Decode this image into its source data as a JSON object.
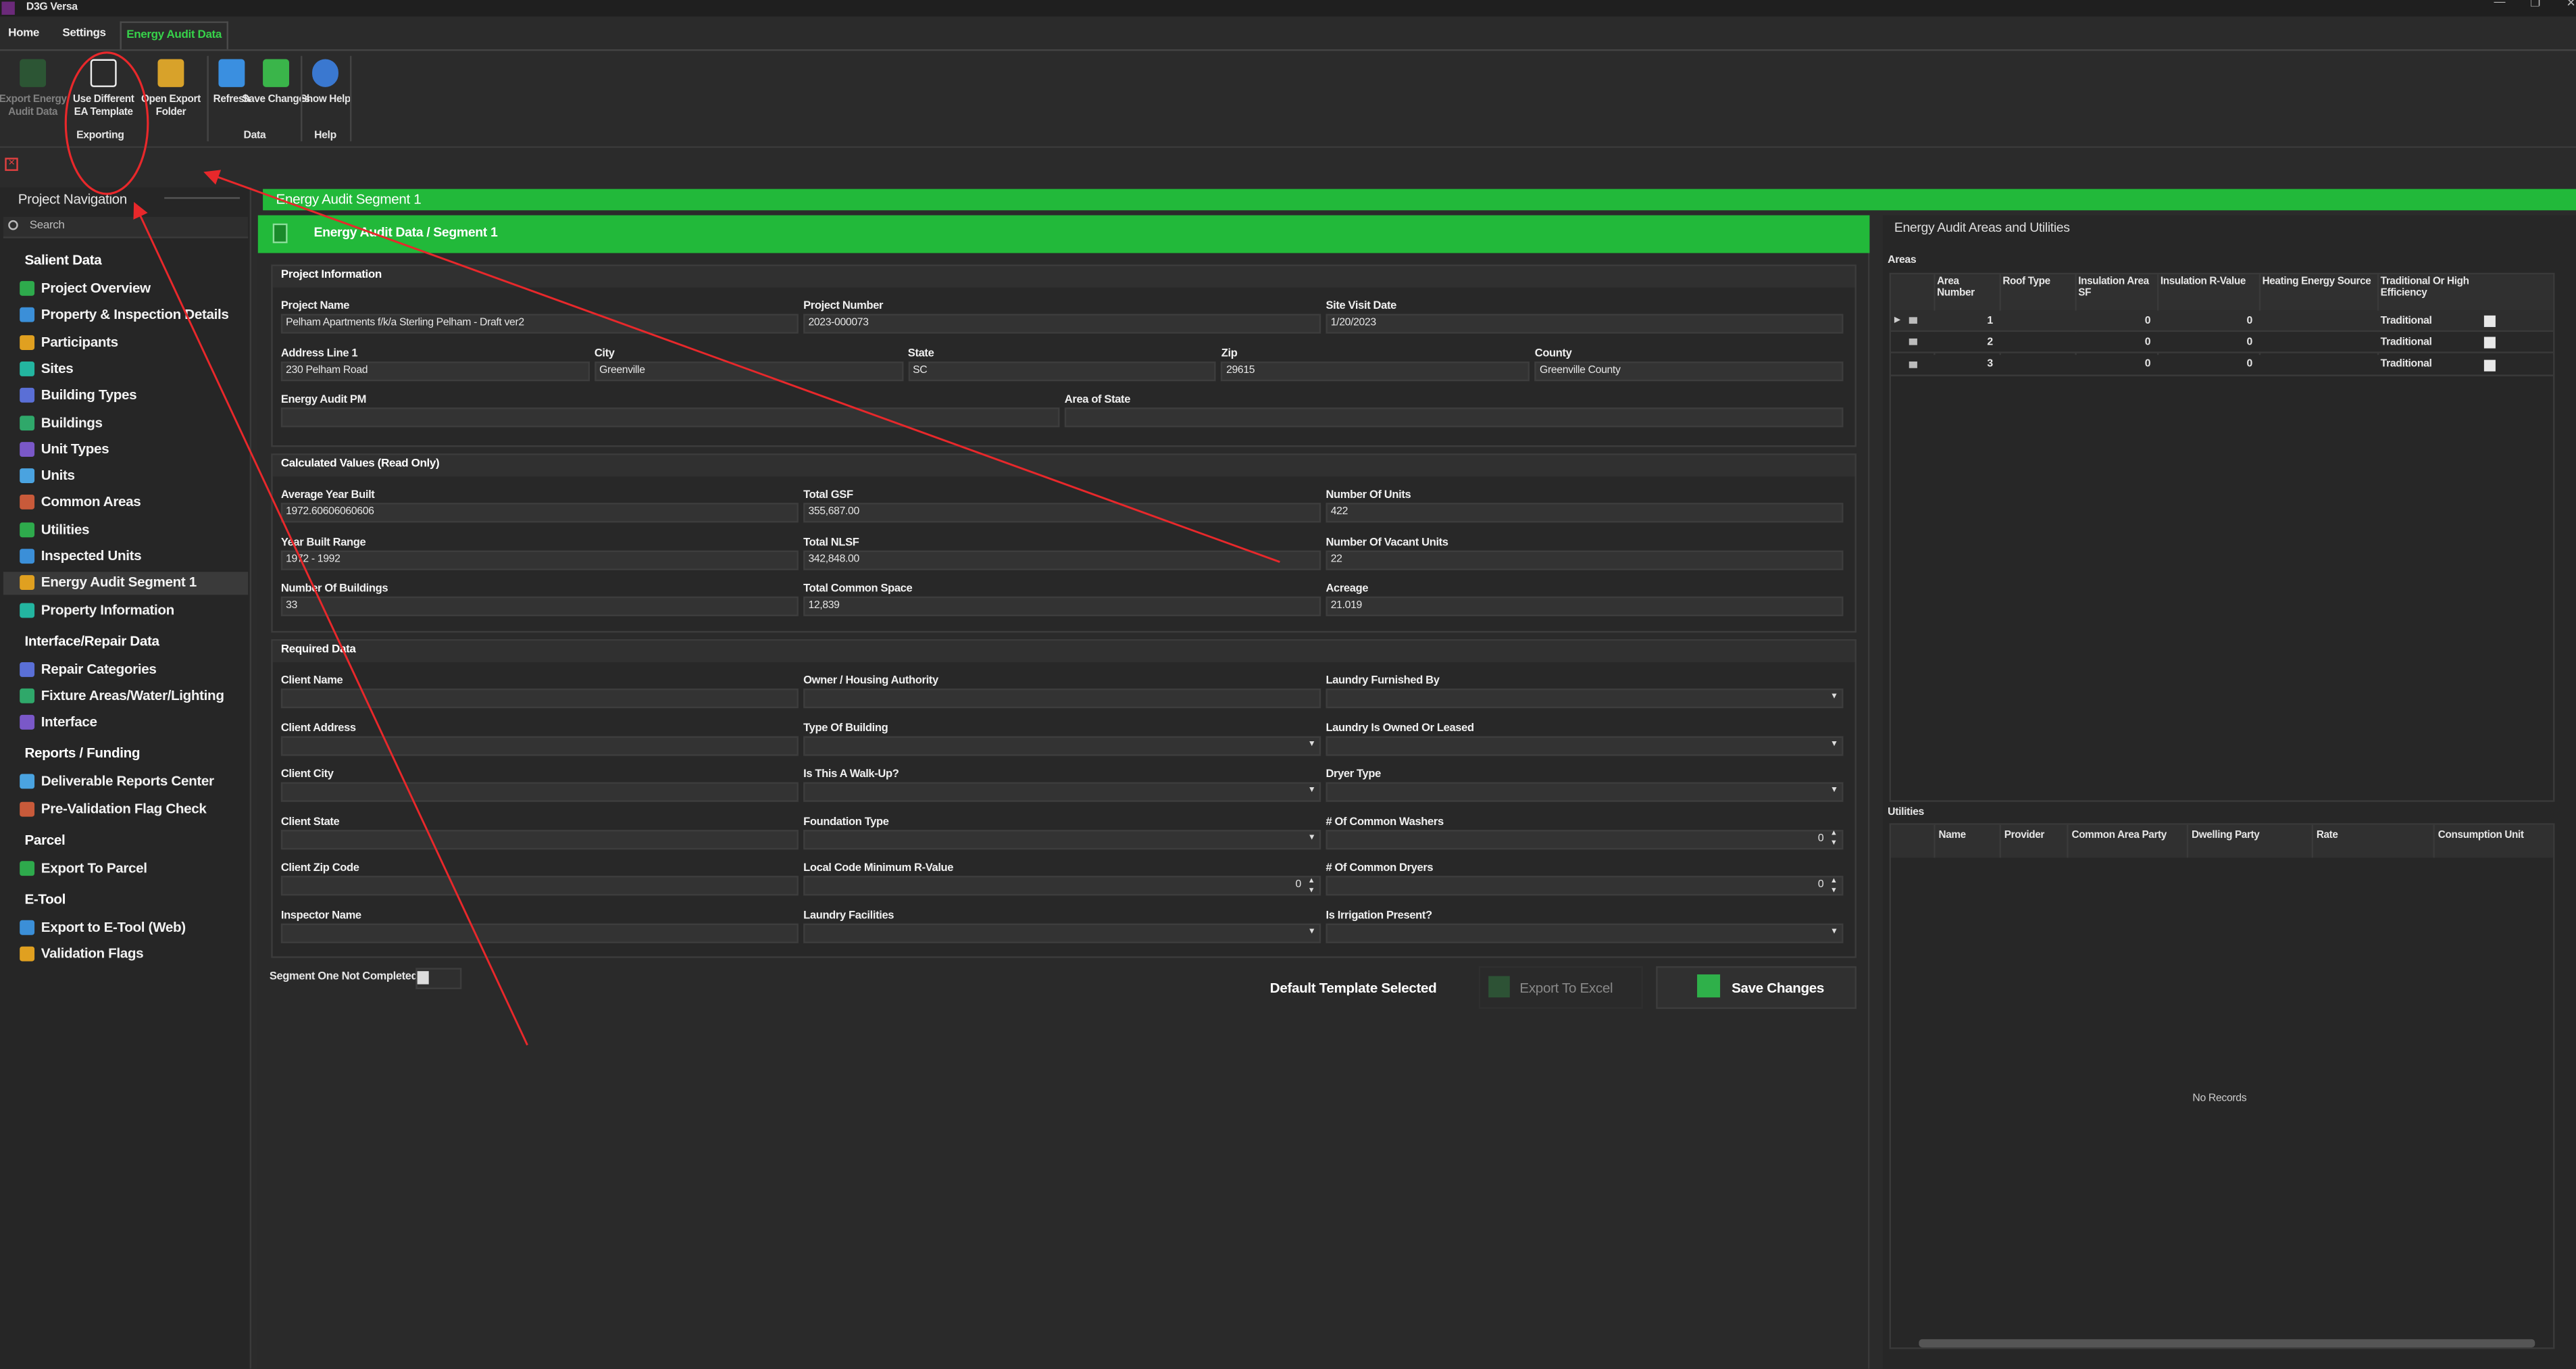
{
  "app": {
    "title": "D3G Versa"
  },
  "tabs": [
    "Home",
    "Settings",
    "Energy Audit Data"
  ],
  "active_tab": 2,
  "ribbon": {
    "buttons": [
      {
        "label": "Export Energy Audit Data",
        "enabled": false
      },
      {
        "label": "Use Different EA Template",
        "enabled": true
      },
      {
        "label": "Open Export Folder",
        "enabled": true
      },
      {
        "label": "Refresh",
        "enabled": true
      },
      {
        "label": "Save Changes",
        "enabled": true
      },
      {
        "label": "Show Help",
        "enabled": true
      }
    ],
    "groups": [
      "Exporting",
      "Data",
      "Help"
    ]
  },
  "navigation": {
    "title": "Project Navigation",
    "search_placeholder": "Search",
    "groups": [
      {
        "title": "Salient Data",
        "items": [
          "Project Overview",
          "Property & Inspection Details",
          "Participants",
          "Sites",
          "Building Types",
          "Buildings",
          "Unit Types",
          "Units",
          "Common Areas",
          "Utilities",
          "Inspected Units",
          "Energy Audit Segment 1",
          "Property Information"
        ]
      },
      {
        "title": "Interface/Repair Data",
        "items": [
          "Repair Categories",
          "Fixture Areas/Water/Lighting",
          "Interface"
        ]
      },
      {
        "title": "Reports / Funding",
        "items": [
          "Deliverable Reports Center",
          "Pre-Validation Flag Check"
        ]
      },
      {
        "title": "Parcel",
        "items": [
          "Export To Parcel"
        ]
      },
      {
        "title": "E-Tool",
        "items": [
          "Export to E-Tool (Web)",
          "Validation Flags"
        ]
      }
    ],
    "selected_item": {
      "group": 0,
      "item": 11
    }
  },
  "document": {
    "tab_title": "Energy Audit Segment 1",
    "header": "Energy Audit Data / Segment 1",
    "sections": [
      {
        "title": "Project Information",
        "rows": [
          [
            {
              "label": "Project Name",
              "value": "Pelham Apartments f/k/a Sterling Pelham - Draft ver2"
            },
            {
              "label": "Project Number",
              "value": "2023-000073"
            },
            {
              "label": "Site Visit Date",
              "value": "1/20/2023"
            }
          ],
          [
            {
              "label": "Address Line 1",
              "value": "230 Pelham Road"
            },
            {
              "label": "City",
              "value": "Greenville"
            },
            {
              "label": "State",
              "value": "SC"
            },
            {
              "label": "Zip",
              "value": "29615"
            },
            {
              "label": "County",
              "value": "Greenville County"
            }
          ],
          [
            {
              "label": "Energy Audit PM"
            },
            {
              "label": "Area of State"
            }
          ]
        ]
      },
      {
        "title": "Calculated Values (Read Only)",
        "rows": [
          [
            {
              "label": "Average Year Built",
              "value": "1972.60606060606"
            },
            {
              "label": "Total GSF",
              "value": "355,687.00"
            },
            {
              "label": "Number Of Units",
              "value": 422
            }
          ],
          [
            {
              "label": "Year Built Range",
              "value": "1972 - 1992"
            },
            {
              "label": "Total NLSF",
              "value": "342,848.00"
            },
            {
              "label": "Number Of Vacant Units",
              "value": 22
            }
          ],
          [
            {
              "label": "Number Of Buildings",
              "value": 33
            },
            {
              "label": "Total Common Space",
              "value": "12,839"
            },
            {
              "label": "Acreage",
              "value": 21.019
            }
          ]
        ]
      },
      {
        "title": "Required Data",
        "rows": [
          [
            {
              "label": "Client Name"
            },
            {
              "label": "Owner / Housing Authority"
            },
            {
              "label": "Laundry Furnished By",
              "control": "dropdown"
            }
          ],
          [
            {
              "label": "Client Address"
            },
            {
              "label": "Type Of Building",
              "control": "dropdown"
            },
            {
              "label": "Laundry Is Owned Or Leased",
              "control": "dropdown"
            }
          ],
          [
            {
              "label": "Client City"
            },
            {
              "label": "Is This A Walk-Up?",
              "control": "dropdown"
            },
            {
              "label": "Dryer Type",
              "control": "dropdown"
            }
          ],
          [
            {
              "label": "Client State"
            },
            {
              "label": "Foundation Type",
              "control": "dropdown"
            },
            {
              "label": "# Of Common Washers",
              "control": "spinner",
              "value": 0
            }
          ],
          [
            {
              "label": "Client Zip Code"
            },
            {
              "label": "Local Code Minimum R-Value",
              "control": "spinner",
              "value": 0
            },
            {
              "label": "# Of Common Dryers",
              "control": "spinner",
              "value": 0
            }
          ],
          [
            {
              "label": "Inspector Name"
            },
            {
              "label": "Laundry Facilities",
              "control": "dropdown"
            },
            {
              "label": "Is Irrigation Present?",
              "control": "dropdown"
            }
          ]
        ]
      }
    ],
    "segment_status": "Segment One Not Completed",
    "template_status": "Default Template Selected",
    "export_button": {
      "label": "Export To Excel",
      "enabled": false
    },
    "save_button": {
      "label": "Save Changes",
      "enabled": true
    }
  },
  "areas_utilities": {
    "title": "Energy Audit Areas and Utilities",
    "areas": {
      "title": "Areas",
      "columns": [
        "Area Number",
        "Roof Type",
        "Insulation Area SF",
        "Insulation R-Value",
        "Heating Energy Source",
        "Traditional Or High Efficiency"
      ],
      "rows": [
        [
          1,
          null,
          0,
          0,
          null,
          "Traditional"
        ],
        [
          2,
          null,
          0,
          0,
          null,
          "Traditional"
        ],
        [
          3,
          null,
          0,
          0,
          null,
          "Traditional"
        ]
      ]
    },
    "utilities": {
      "title": "Utilities",
      "columns": [
        "Name",
        "Provider",
        "Common Area Party",
        "Dwelling Party",
        "Rate",
        "Consumption Unit"
      ],
      "empty_text": "No Records"
    }
  }
}
